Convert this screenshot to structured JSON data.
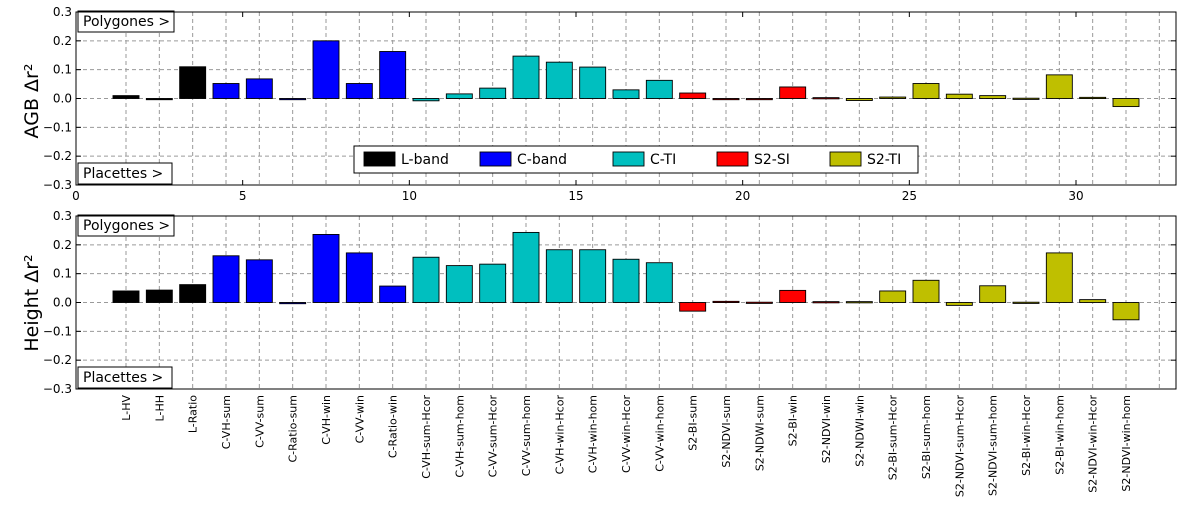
{
  "colors": {
    "L-band": "#000000",
    "C-band": "#0000ff",
    "C-TI": "#00bfbf",
    "S2-SI": "#ff0000",
    "S2-TI": "#bfbf00"
  },
  "legend": [
    "L-band",
    "C-band",
    "C-TI",
    "S2-SI",
    "S2-TI"
  ],
  "annotations": {
    "top": "Polygones >",
    "bottom": "Placettes >"
  },
  "chart_data": [
    {
      "type": "bar",
      "ylabel": "AGB Δr²",
      "ylim": [
        -0.3,
        0.3
      ],
      "yticks": [
        "−0.3",
        "−0.2",
        "−0.1",
        "0.0",
        "0.1",
        "0.2",
        "0.3"
      ],
      "xlim": [
        0,
        33
      ],
      "xticks": [
        "0",
        "5",
        "10",
        "15",
        "20",
        "25",
        "30"
      ],
      "grid": true,
      "legend_position": "bottom-center",
      "x": [
        1,
        2,
        3,
        4,
        5,
        6,
        7,
        8,
        9,
        10,
        11,
        12,
        13,
        14,
        15,
        16,
        17,
        18,
        19,
        20,
        21,
        22,
        23,
        24,
        25,
        26,
        27,
        28,
        29,
        30,
        31
      ],
      "groups": [
        "L-band",
        "L-band",
        "L-band",
        "C-band",
        "C-band",
        "C-band",
        "C-band",
        "C-band",
        "C-band",
        "C-TI",
        "C-TI",
        "C-TI",
        "C-TI",
        "C-TI",
        "C-TI",
        "C-TI",
        "C-TI",
        "S2-SI",
        "S2-SI",
        "S2-SI",
        "S2-SI",
        "S2-SI",
        "S2-TI",
        "S2-TI",
        "S2-TI",
        "S2-TI",
        "S2-TI",
        "S2-TI",
        "S2-TI",
        "S2-TI",
        "S2-TI"
      ],
      "values": [
        0.01,
        -0.003,
        0.11,
        0.052,
        0.068,
        0.0,
        0.2,
        0.052,
        0.163,
        -0.008,
        0.016,
        0.036,
        0.147,
        0.126,
        0.109,
        0.03,
        0.063,
        0.019,
        -0.003,
        -0.003,
        0.04,
        0.003,
        -0.007,
        0.005,
        0.052,
        0.015,
        0.01,
        0.001,
        0.082,
        0.004,
        -0.028
      ]
    },
    {
      "type": "bar",
      "ylabel": "Height Δr²",
      "ylim": [
        -0.3,
        0.3
      ],
      "yticks": [
        "−0.3",
        "−0.2",
        "−0.1",
        "0.0",
        "0.1",
        "0.2",
        "0.3"
      ],
      "xlim": [
        0,
        33
      ],
      "grid": true,
      "categories": [
        "L-HV",
        "L-HH",
        "L-Ratio",
        "C-VH-sum",
        "C-VV-sum",
        "C-Ratio-sum",
        "C-VH-win",
        "C-VV-win",
        "C-Ratio-win",
        "C-VH-sum-Hcor",
        "C-VH-sum-hom",
        "C-VV-sum-Hcor",
        "C-VV-sum-hom",
        "C-VH-win-Hcor",
        "C-VH-win-hom",
        "C-VV-win-Hcor",
        "C-VV-win-hom",
        "S2-BI-sum",
        "S2-NDVI-sum",
        "S2-NDWI-sum",
        "S2-BI-win",
        "S2-NDVI-win",
        "S2-NDWI-win",
        "S2-BI-sum-Hcor",
        "S2-BI-sum-hom",
        "S2-NDVI-sum-Hcor",
        "S2-NDVI-sum-hom",
        "S2-BI-win-Hcor",
        "S2-BI-win-hom",
        "S2-NDVI-win-Hcor",
        "S2-NDVI-win-hom"
      ],
      "groups": [
        "L-band",
        "L-band",
        "L-band",
        "C-band",
        "C-band",
        "C-band",
        "C-band",
        "C-band",
        "C-band",
        "C-TI",
        "C-TI",
        "C-TI",
        "C-TI",
        "C-TI",
        "C-TI",
        "C-TI",
        "C-TI",
        "S2-SI",
        "S2-SI",
        "S2-SI",
        "S2-SI",
        "S2-SI",
        "S2-TI",
        "S2-TI",
        "S2-TI",
        "S2-TI",
        "S2-TI",
        "S2-TI",
        "S2-TI",
        "S2-TI",
        "S2-TI"
      ],
      "values": [
        0.04,
        0.043,
        0.062,
        0.162,
        0.148,
        0.0,
        0.236,
        0.172,
        0.057,
        0.157,
        0.128,
        0.133,
        0.243,
        0.183,
        0.183,
        0.15,
        0.138,
        -0.03,
        0.004,
        0.001,
        0.042,
        0.003,
        0.003,
        0.04,
        0.077,
        -0.01,
        0.058,
        0.001,
        0.172,
        0.01,
        -0.06
      ]
    }
  ]
}
